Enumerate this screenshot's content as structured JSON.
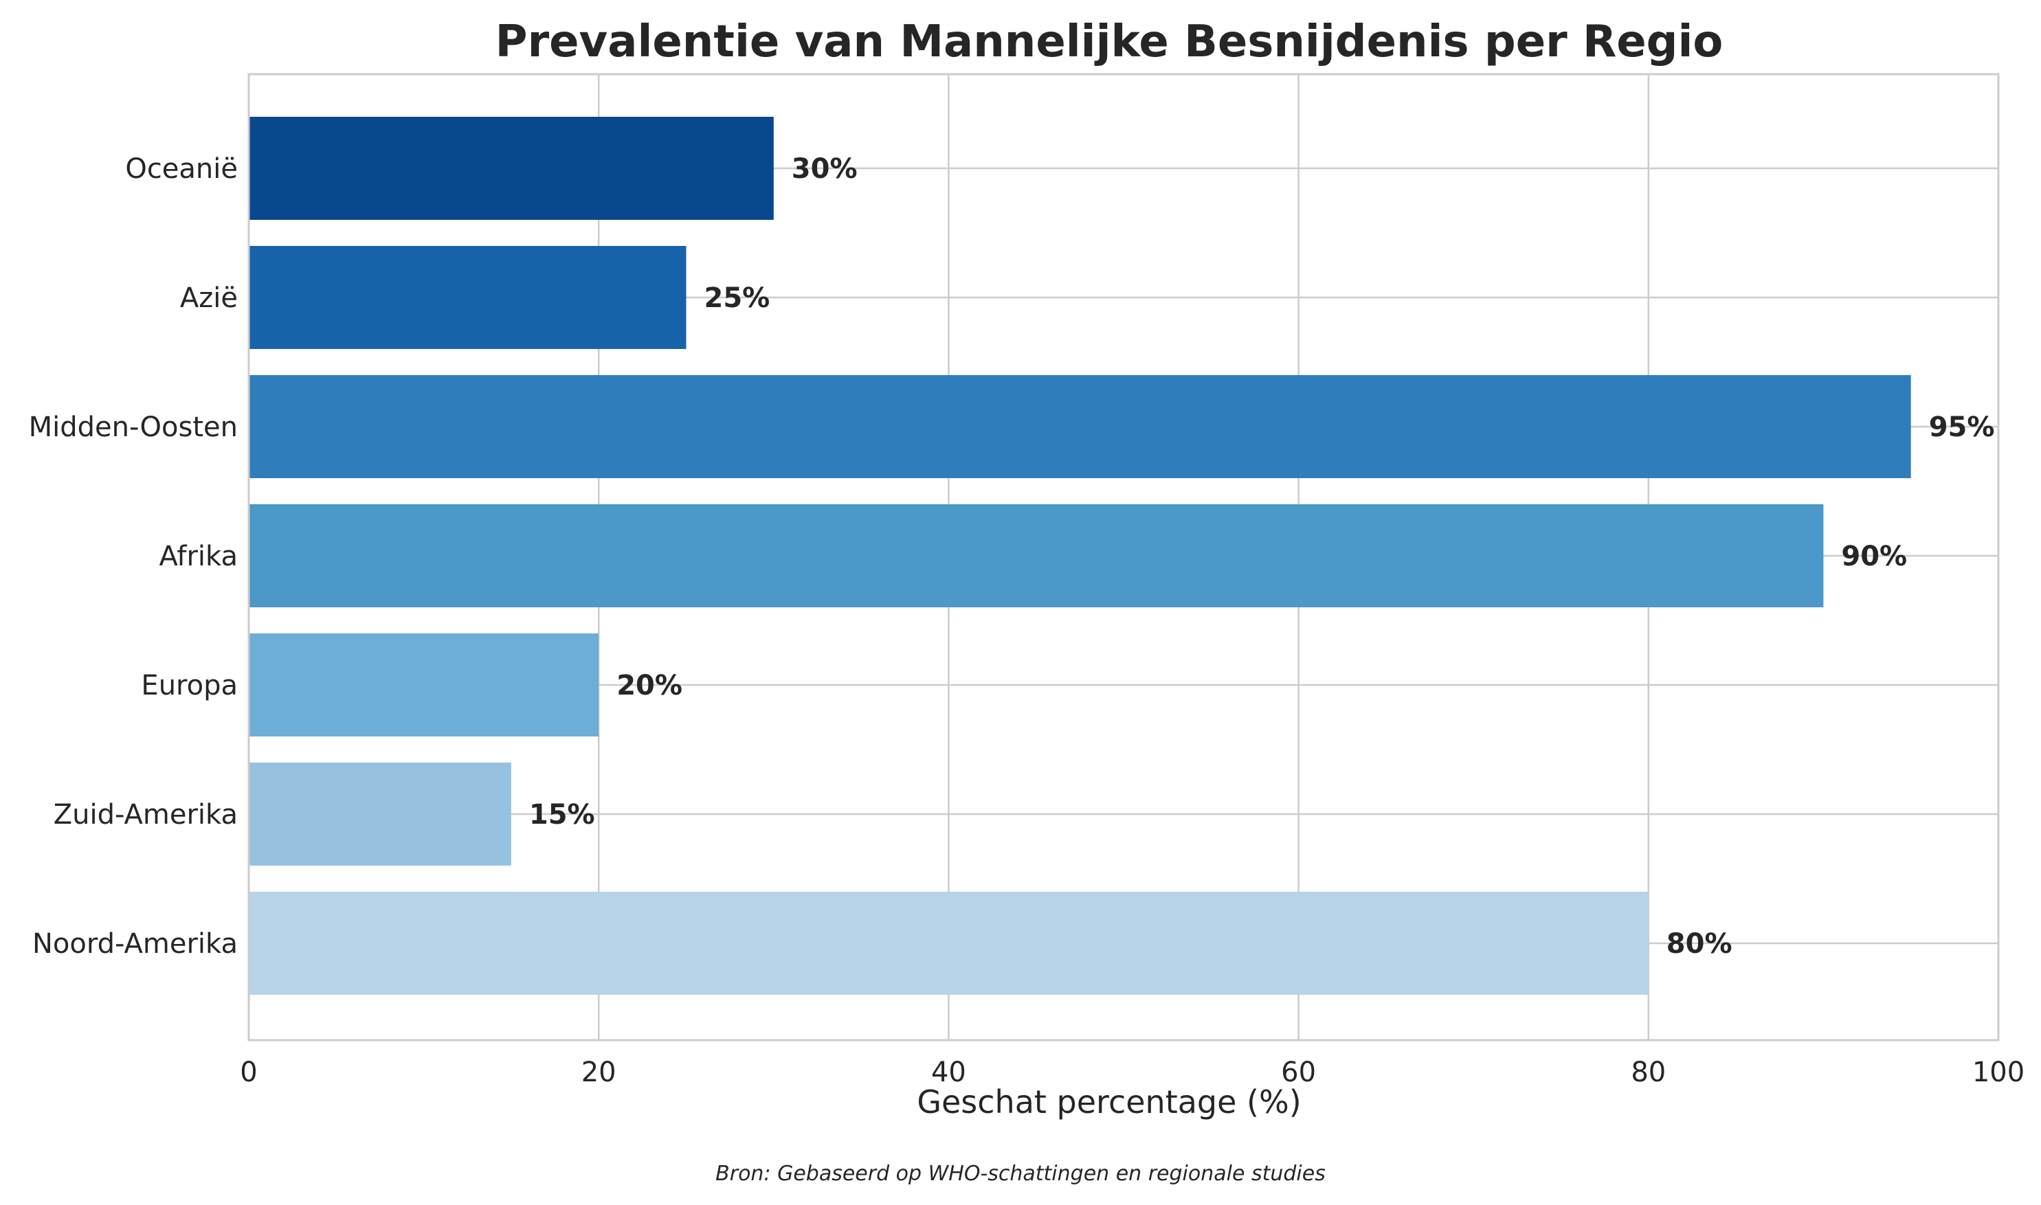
{
  "chart_data": {
    "type": "bar",
    "orientation": "horizontal",
    "title": "Prevalentie van Mannelijke Besnijdenis per Regio",
    "xlabel": "Geschat percentage (%)",
    "ylabel": "",
    "categories": [
      "Noord-Amerika",
      "Zuid-Amerika",
      "Europa",
      "Afrika",
      "Midden-Oosten",
      "Azië",
      "Oceanië"
    ],
    "values": [
      80,
      15,
      20,
      90,
      95,
      25,
      30
    ],
    "data_labels": [
      "80%",
      "15%",
      "20%",
      "90%",
      "95%",
      "25%",
      "30%"
    ],
    "colors": [
      "#b8d4e9",
      "#96c2e0",
      "#6daed6",
      "#4b98c9",
      "#2f7ebb",
      "#1763aa",
      "#08488e"
    ],
    "xlim": [
      0,
      100
    ],
    "xticks": [
      0,
      20,
      40,
      60,
      80,
      100
    ],
    "xtick_labels": [
      "0",
      "20",
      "40",
      "60",
      "80",
      "100"
    ],
    "grid": true,
    "source": "Bron: Gebaseerd op WHO-schattingen en regionale studies"
  }
}
